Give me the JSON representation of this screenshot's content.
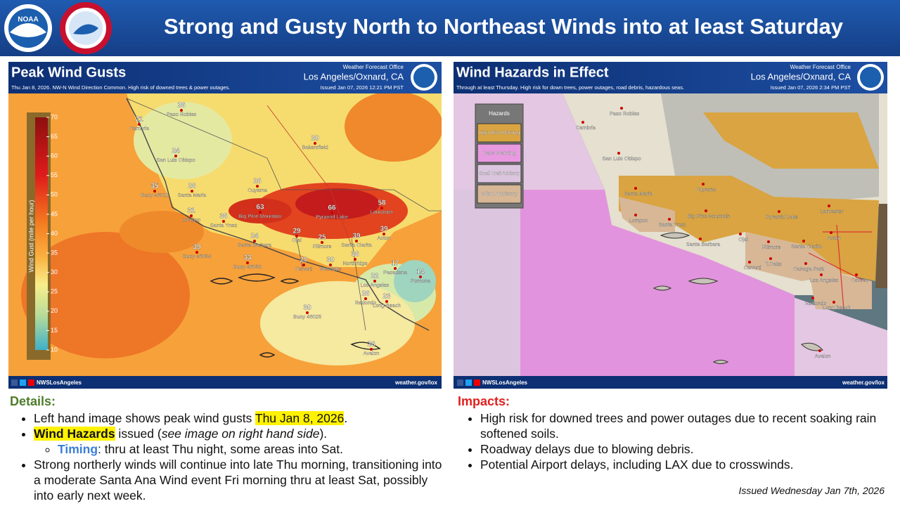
{
  "header": {
    "title": "Strong and Gusty North to Northeast Winds into at least Saturday"
  },
  "left_panel": {
    "title": "Peak Wind Gusts",
    "office_label": "Weather Forecast Office",
    "office_name": "Los Angeles/Oxnard, CA",
    "subtitle": "Thu Jan 8, 2026.  NW-N Wind Direction Common. High risk of downed trees & power outages.",
    "issued": "Issued Jan 07, 2026 12:21 PM PST",
    "colorbar": {
      "label": "Wind Gust (mile per hour)",
      "ticks": [
        70,
        65,
        60,
        55,
        50,
        45,
        40,
        35,
        30,
        25,
        20,
        15,
        10
      ]
    },
    "places": [
      {
        "value": 26,
        "name": "Paso Robles"
      },
      {
        "value": 21,
        "name": "Cambria"
      },
      {
        "value": 20,
        "name": "Bakersfield"
      },
      {
        "value": 24,
        "name": "San Luis Obispo"
      },
      {
        "value": 26,
        "name": "Cuyama"
      },
      {
        "value": 35,
        "name": "Buoy 46011"
      },
      {
        "value": 26,
        "name": "Santa Maria"
      },
      {
        "value": 31,
        "name": "Lompoc"
      },
      {
        "value": 36,
        "name": "Santa Ynez"
      },
      {
        "value": 63,
        "name": "Big Pine Mountain"
      },
      {
        "value": 66,
        "name": "Pyramid Lake"
      },
      {
        "value": 58,
        "name": "Lancaster"
      },
      {
        "value": 24,
        "name": "Santa Barbara"
      },
      {
        "value": 29,
        "name": "Ojai"
      },
      {
        "value": 25,
        "name": "Fillmore"
      },
      {
        "value": 39,
        "name": "Santa Clarita"
      },
      {
        "value": 39,
        "name": "Acton"
      },
      {
        "value": 39,
        "name": "Buoy 46054"
      },
      {
        "value": 33,
        "name": "Buoy 46053"
      },
      {
        "value": 20,
        "name": "Oxnard"
      },
      {
        "value": 30,
        "name": "Westlake"
      },
      {
        "value": 36,
        "name": "Northridge"
      },
      {
        "value": 17,
        "name": "Pasadena"
      },
      {
        "value": 14,
        "name": "Pomona"
      },
      {
        "value": 22,
        "name": "Los Angeles"
      },
      {
        "value": 26,
        "name": "Redondo"
      },
      {
        "value": 23,
        "name": "Long Beach"
      },
      {
        "value": 30,
        "name": "Buoy 46025"
      },
      {
        "value": 26,
        "name": "Avalon"
      }
    ],
    "footer_social": "NWSLosAngeles",
    "footer_url": "weather.gov/lox"
  },
  "right_panel": {
    "title": "Wind Hazards in Effect",
    "office_label": "Weather Forecast Office",
    "office_name": "Los Angeles/Oxnard, CA",
    "subtitle": "Through at least Thursday. High risk for down trees, power outages, road debris, hazardous seas.",
    "issued": "Issued Jan 07, 2026 2:34 PM PST",
    "legend": {
      "title": "Hazards",
      "items": [
        {
          "label": "High Wind Warning",
          "color": "#d9a441"
        },
        {
          "label": "Gale Warning",
          "color": "#e79ae0"
        },
        {
          "label": "Small Craft Advisory",
          "color": "#dcc5de"
        },
        {
          "label": "Wind Advisory",
          "color": "#d7b796"
        }
      ]
    },
    "places": [
      "Paso Robles",
      "Cambria",
      "San Luis Obispo",
      "Santa Maria",
      "Cuyama",
      "Lompoc",
      "Santa Ynez",
      "Big Pine Mountain",
      "Pyramid Lake",
      "Lancaster",
      "Santa Barbara",
      "Ojai",
      "Fillmore",
      "Santa Clarita",
      "Acton",
      "Oxnard",
      "T.Oaks",
      "Canoga Park",
      "Los Angeles",
      "Covina",
      "Redondo",
      "Long Beach",
      "Avalon"
    ],
    "footer_social": "NWSLosAngeles",
    "footer_url": "weather.gov/lox"
  },
  "details": {
    "heading": "Details:",
    "bullet1": [
      "Left hand image shows peak wind gusts ",
      "Thu Jan 8, 2026",
      "."
    ],
    "bullet2": [
      "Wind Hazards",
      " issued (",
      "see image on right hand side",
      ")."
    ],
    "sub_bullet": [
      "Timing",
      ": thru at least Thu night, some areas into Sat."
    ],
    "bullet3": "Strong northerly winds will continue into late Thu morning, transitioning into a moderate Santa Ana Wind event Fri morning thru at least Sat, possibly into early next week."
  },
  "impacts": {
    "heading": "Impacts:",
    "bullets": [
      "High risk for downed trees and power outages due to recent soaking rain softened soils.",
      "Roadway delays due to blowing debris.",
      "Potential Airport delays, including LAX due to crosswinds."
    ]
  },
  "issued_note": "Issued Wednesday Jan 7th, 2026"
}
